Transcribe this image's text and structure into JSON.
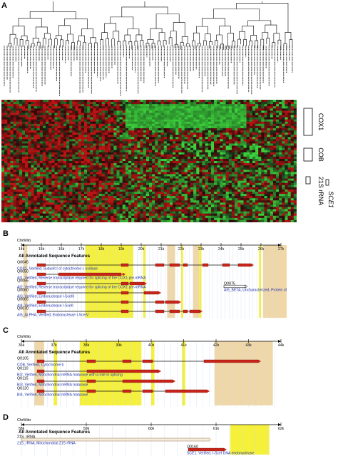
{
  "panel_a": {
    "letter": "A",
    "gene_labels": [
      {
        "id": "cox1",
        "text": "COX1"
      },
      {
        "id": "cob",
        "text": "COB"
      },
      {
        "id": "rrna21s",
        "text": "21S rRNA"
      },
      {
        "id": "sce1",
        "text": "SCE1"
      }
    ]
  },
  "panel_b": {
    "letter": "B",
    "chrom_label": "ChrMito",
    "axis_ticks": [
      "14k",
      "15k",
      "16k",
      "17k",
      "18k",
      "19k",
      "20k",
      "21k",
      "22k",
      "23k",
      "24k",
      "25k",
      "26k",
      "27k"
    ],
    "track_title": "All Annotated Sequence Features",
    "features": [
      {
        "id": "Q0045",
        "desc": "COX1, Verified, Subunit I of cytochrome c oxidase"
      },
      {
        "id": "Q0050",
        "desc": "AI1, Verified, Reverse transcriptase required for splicing of the COX1 pre-mRNA"
      },
      {
        "id": "Q0055",
        "desc": "AI2, Verified, Reverse transcriptase required for splicing of the COX1 pre-mRNA"
      },
      {
        "id": "Q0060",
        "desc": "AI3, Verified, Endonuclease I-SceIII"
      },
      {
        "id": "Q0065",
        "desc": "AI4, Verified, Endonuclease I-SceII"
      },
      {
        "id": "Q0070",
        "desc": "AI5_ALPHA, Verified, Endonuclease I-SceIV"
      }
    ],
    "side_feature": {
      "id": "Q0075",
      "desc": "AI5_BETA, Uncharacterized, Protein of unknown function"
    }
  },
  "panel_c": {
    "letter": "C",
    "chrom_label": "ChrMito",
    "axis_ticks": [
      "36k",
      "37k",
      "38k",
      "39k",
      "40k",
      "41k",
      "42k",
      "43k",
      "44k"
    ],
    "track_title": "All Annotated Sequence Features",
    "features": [
      {
        "id": "Q0105",
        "desc": "COB, Verified, Cytochrome b"
      },
      {
        "id": "Q0110",
        "desc": "BI2, Verified, Mitochondrial mRNA maturase with a role in splicing"
      },
      {
        "id": "Q0115",
        "desc": "BI3, Verified, Mitochondrial mRNA maturase"
      },
      {
        "id": "Q0120",
        "desc": "BI4, Verified, Mitochondrial mRNA maturase"
      }
    ]
  },
  "panel_d": {
    "letter": "D",
    "chrom_label": "ChrMito",
    "axis_ticks": [
      "58k",
      "59k",
      "60k",
      "61k",
      "62k"
    ],
    "track_title": "All Annotated Sequence Features",
    "features": [
      {
        "id": "21S_rRNA",
        "label": "21S_rRNA",
        "desc": "21S_rRNA, Mitochondrial 21S rRNA"
      },
      {
        "id": "Q0160",
        "label": "Q0160",
        "desc": "SCE1, Verified, I-SceI DNA endonuclease"
      }
    ]
  },
  "colors": {
    "heat_red": "#b01818",
    "heat_green": "#3fd23f",
    "highlight_yellow": "#f5f03a",
    "highlight_tan": "#efd7a8",
    "exon_red": "#c8251a",
    "text_blue": "#2233aa"
  }
}
